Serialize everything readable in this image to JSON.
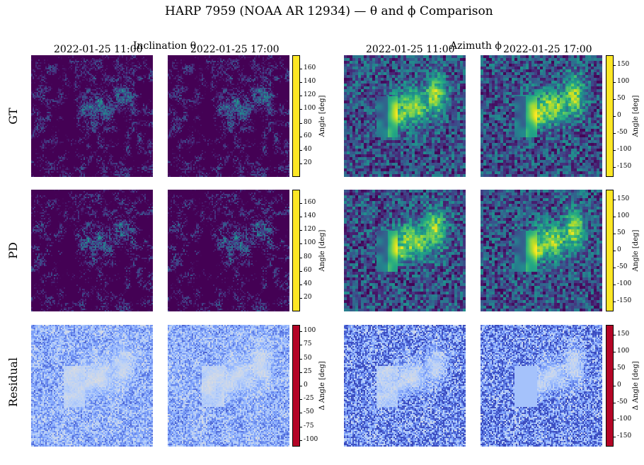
{
  "figure": {
    "title": "HARP 7959 (NOAA AR 12934) — θ and ϕ Comparison",
    "row_labels": [
      "GT",
      "PD",
      "Residual"
    ],
    "groups": [
      {
        "key": "inclination",
        "title": "Inclination θ",
        "timestamps": [
          "2022-01-25 11:00",
          "2022-01-25 17:00"
        ]
      },
      {
        "key": "azimuth",
        "title": "Azimuth ϕ",
        "timestamps": [
          "2022-01-25 11:00",
          "2022-01-25 17:00"
        ]
      }
    ]
  },
  "chart_data": {
    "type": "heatmap",
    "grid": {
      "rows": 3,
      "cols": 4
    },
    "colorbars": [
      {
        "id": "inc-value",
        "label": "Angle [deg]",
        "colormap": "viridis",
        "range": [
          0,
          180
        ],
        "ticks": [
          20,
          40,
          60,
          80,
          100,
          120,
          140,
          160
        ]
      },
      {
        "id": "azi-value",
        "label": "Angle [deg]",
        "colormap": "viridis",
        "range": [
          -180,
          180
        ],
        "ticks": [
          -150,
          -100,
          -50,
          0,
          50,
          100,
          150
        ]
      },
      {
        "id": "inc-residual",
        "label": "Δ Angle [deg]",
        "colormap": "coolwarm",
        "range": [
          -112,
          112
        ],
        "ticks": [
          -100,
          -75,
          -50,
          -25,
          0,
          25,
          50,
          75,
          100
        ]
      },
      {
        "id": "azi-residual",
        "label": "Δ Angle [deg]",
        "colormap": "coolwarm",
        "range": [
          -180,
          180
        ],
        "ticks": [
          -150,
          -100,
          -50,
          0,
          50,
          100,
          150
        ]
      }
    ]
  }
}
